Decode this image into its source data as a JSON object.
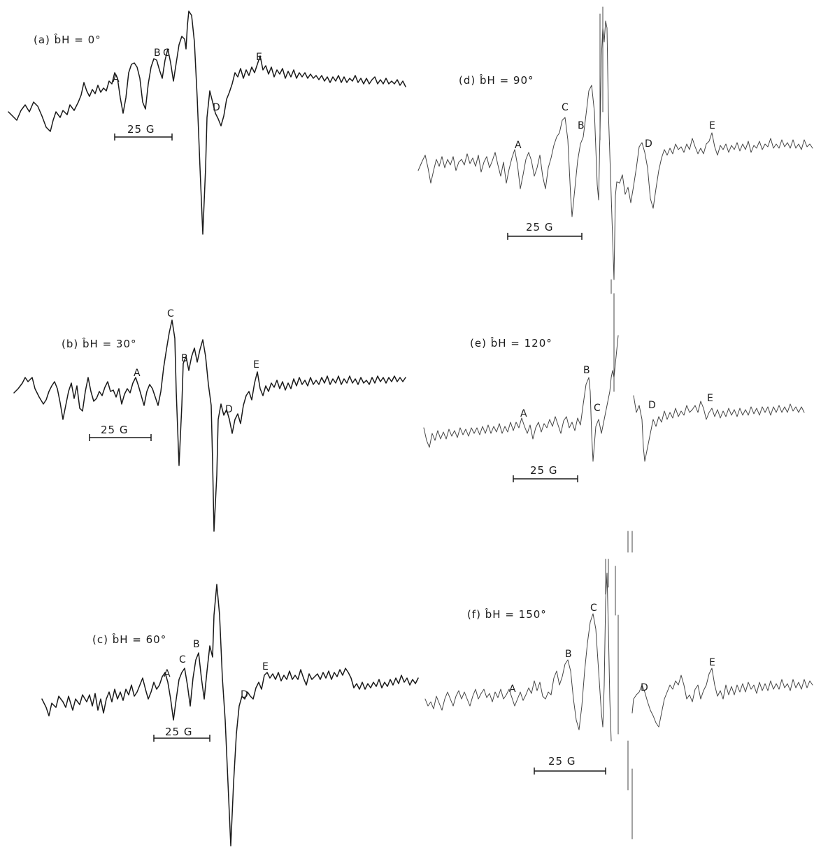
{
  "panels": [
    {
      "id": "a",
      "label": "(a) b̂H = 0°",
      "scale_bar": "25 G",
      "peaks": [
        "A",
        "B",
        "C",
        "D",
        "E"
      ]
    },
    {
      "id": "b",
      "label": "(b) b̂H = 30°",
      "scale_bar": "25 G",
      "peaks": [
        "A",
        "B",
        "C",
        "D",
        "E"
      ]
    },
    {
      "id": "c",
      "label": "(c) b̂H = 60°",
      "scale_bar": "25 G",
      "peaks": [
        "A",
        "B",
        "C",
        "D",
        "E"
      ]
    },
    {
      "id": "d",
      "label": "(d) b̂H = 90°",
      "scale_bar": "25 G",
      "peaks": [
        "A",
        "B",
        "C",
        "D",
        "E"
      ]
    },
    {
      "id": "e",
      "label": "(e) b̂H = 120°",
      "scale_bar": "25 G",
      "peaks": [
        "A",
        "B",
        "C",
        "D",
        "E"
      ]
    },
    {
      "id": "f",
      "label": "(f) b̂H = 150°",
      "scale_bar": "25 G",
      "peaks": [
        "A",
        "B",
        "C",
        "D",
        "E"
      ]
    }
  ]
}
